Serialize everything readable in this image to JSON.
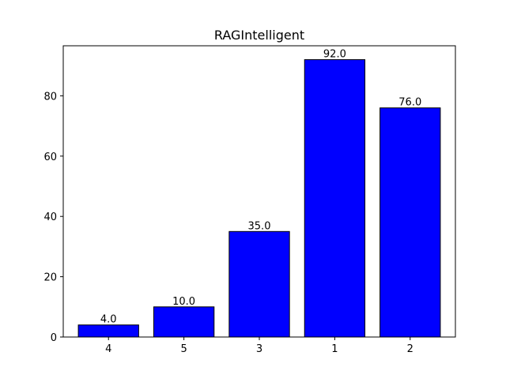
{
  "chart_data": {
    "type": "bar",
    "title": "RAGIntelligent",
    "xlabel": "",
    "ylabel": "",
    "categories": [
      "4",
      "5",
      "3",
      "1",
      "2"
    ],
    "values": [
      4.0,
      10.0,
      35.0,
      92.0,
      76.0
    ],
    "value_labels": [
      "4.0",
      "10.0",
      "35.0",
      "92.0",
      "76.0"
    ],
    "ylim": [
      0,
      96.6
    ],
    "yticks": [
      0,
      20,
      40,
      60,
      80
    ],
    "grid": false,
    "legend": "none",
    "bar_color": "#0000ff",
    "bar_edge_color": "#000000"
  }
}
